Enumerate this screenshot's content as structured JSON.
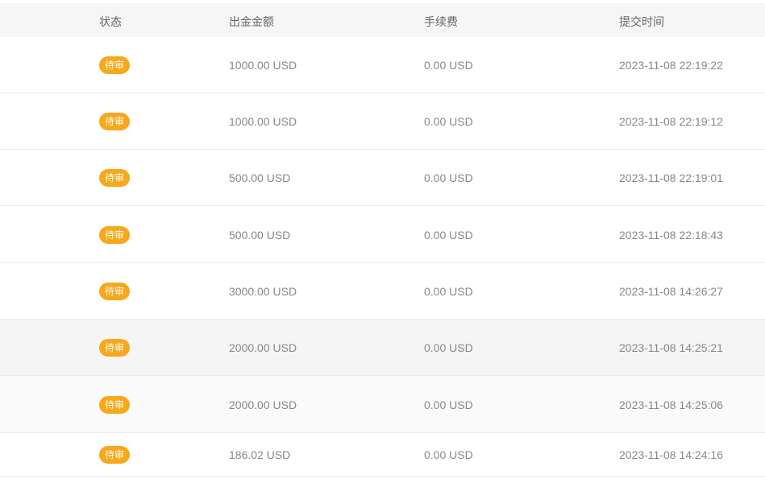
{
  "header": {
    "status": "状态",
    "amount": "出金金额",
    "fee": "手续费",
    "time": "提交时间"
  },
  "colors": {
    "badge": "#f7a81b"
  },
  "rows": [
    {
      "status": "待审",
      "amount": "1000.00 USD",
      "fee": "0.00 USD",
      "time": "2023-11-08 22:19:22"
    },
    {
      "status": "待审",
      "amount": "1000.00 USD",
      "fee": "0.00 USD",
      "time": "2023-11-08 22:19:12"
    },
    {
      "status": "待审",
      "amount": "500.00 USD",
      "fee": "0.00 USD",
      "time": "2023-11-08 22:19:01"
    },
    {
      "status": "待审",
      "amount": "500.00 USD",
      "fee": "0.00 USD",
      "time": "2023-11-08 22:18:43"
    },
    {
      "status": "待审",
      "amount": "3000.00 USD",
      "fee": "0.00 USD",
      "time": "2023-11-08 14:26:27"
    },
    {
      "status": "待审",
      "amount": "2000.00 USD",
      "fee": "0.00 USD",
      "time": "2023-11-08 14:25:21"
    },
    {
      "status": "待审",
      "amount": "2000.00 USD",
      "fee": "0.00 USD",
      "time": "2023-11-08 14:25:06"
    },
    {
      "status": "待审",
      "amount": "186.02 USD",
      "fee": "0.00 USD",
      "time": "2023-11-08 14:24:16"
    }
  ]
}
